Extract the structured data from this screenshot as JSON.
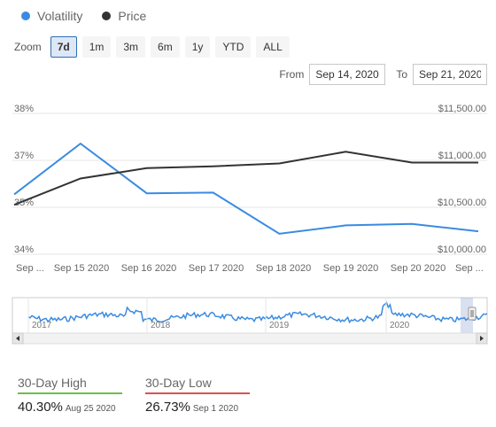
{
  "legend": [
    {
      "label": "Volatility",
      "color": "#3a8be1"
    },
    {
      "label": "Price",
      "color": "#333333"
    }
  ],
  "zoom": {
    "label": "Zoom",
    "options": [
      "7d",
      "1m",
      "3m",
      "6m",
      "1y",
      "YTD",
      "ALL"
    ],
    "active": "7d"
  },
  "range": {
    "from_label": "From",
    "from_value": "Sep 14, 2020",
    "to_label": "To",
    "to_value": "Sep 21, 2020"
  },
  "chart_data": {
    "type": "line",
    "x": [
      "Sep ...",
      "Sep 15 2020",
      "Sep 16 2020",
      "Sep 17 2020",
      "Sep 18 2020",
      "Sep 19 2020",
      "Sep 20 2020",
      "Sep ..."
    ],
    "y_left_ticks": [
      "38%",
      "37%",
      "35%",
      "34%"
    ],
    "y_right_ticks": [
      "$11,500.00",
      "$11,000.00",
      "$10,500.00",
      "$10,000.00"
    ],
    "y_left_range": [
      34,
      38
    ],
    "y_right_range": [
      10000,
      11500
    ],
    "series": [
      {
        "name": "Volatility",
        "color": "#3a8be1",
        "axis": "left",
        "points": [
          [
            0,
            35.55
          ],
          [
            1,
            36.99
          ],
          [
            2,
            35.58
          ],
          [
            3,
            35.6
          ],
          [
            4,
            34.43
          ],
          [
            5,
            34.67
          ],
          [
            6,
            34.71
          ],
          [
            7,
            34.5
          ]
        ]
      },
      {
        "name": "Price",
        "color": "#333333",
        "axis": "right",
        "points": [
          [
            0,
            10470
          ],
          [
            1,
            10750
          ],
          [
            2,
            10860
          ],
          [
            3,
            10880
          ],
          [
            4,
            10910
          ],
          [
            5,
            11035
          ],
          [
            6,
            10920
          ],
          [
            7,
            10920
          ]
        ]
      }
    ],
    "navigator": {
      "labels": [
        "2017",
        "2018",
        "2019",
        "2020"
      ]
    }
  },
  "stats": {
    "high": {
      "label": "30-Day High",
      "value": "40.30%",
      "date": "Aug 25 2020",
      "color": "#6cbf4b"
    },
    "low": {
      "label": "30-Day Low",
      "value": "26.73%",
      "date": "Sep 1 2020",
      "color": "#d9534f"
    }
  }
}
